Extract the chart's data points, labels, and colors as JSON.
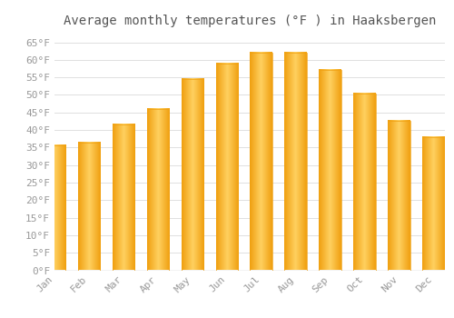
{
  "title": "Average monthly temperatures (°F ) in Haaksbergen",
  "months": [
    "Jan",
    "Feb",
    "Mar",
    "Apr",
    "May",
    "Jun",
    "Jul",
    "Aug",
    "Sep",
    "Oct",
    "Nov",
    "Dec"
  ],
  "values": [
    35.5,
    36.5,
    41.5,
    46.0,
    54.5,
    59.0,
    62.0,
    62.0,
    57.0,
    50.5,
    42.5,
    38.0
  ],
  "bar_color_center": "#FFD060",
  "bar_color_edge": "#F0A010",
  "background_color": "#FFFFFF",
  "grid_color": "#E0E0E0",
  "ylim": [
    0,
    68
  ],
  "yticks": [
    0,
    5,
    10,
    15,
    20,
    25,
    30,
    35,
    40,
    45,
    50,
    55,
    60,
    65
  ],
  "title_fontsize": 10,
  "tick_fontsize": 8,
  "tick_color": "#999999",
  "title_color": "#555555"
}
